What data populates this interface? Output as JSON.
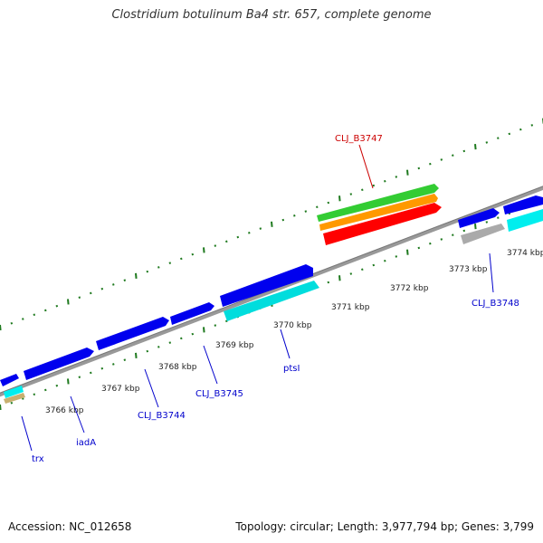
{
  "title": "Clostridium botulinum Ba4 str. 657, complete genome",
  "footer": {
    "accession": "Accession: NC_012658",
    "summary": "Topology: circular; Length: 3,977,794 bp; Genes: 3,799"
  },
  "colors": {
    "backbone": "#999999",
    "tick": "#1f7a1f",
    "gene_forward_reverse": "#0000ee",
    "cds": "#00eeee",
    "rrna_or_other": "#aaaaaa",
    "label_blue": "#0000cc",
    "label_red": "#cc0000",
    "green_feature": "#33cc33",
    "orange_feature": "#ff9900",
    "red_feature": "#ff0000",
    "tan_feature": "#c8b070"
  },
  "scale_labels": [
    "3766 kbp",
    "3767 kbp",
    "3768 kbp",
    "3769 kbp",
    "3770 kbp",
    "3771 kbp",
    "3772 kbp",
    "3773 kbp",
    "3774 kbp"
  ],
  "gene_labels": [
    {
      "text": "trx",
      "color": "blue"
    },
    {
      "text": "iadA",
      "color": "blue"
    },
    {
      "text": "CLJ_B3744",
      "color": "blue"
    },
    {
      "text": "CLJ_B3745",
      "color": "blue"
    },
    {
      "text": "ptsI",
      "color": "blue"
    },
    {
      "text": "CLJ_B3748",
      "color": "blue"
    },
    {
      "text": "CLJ_B3747",
      "color": "red"
    }
  ]
}
